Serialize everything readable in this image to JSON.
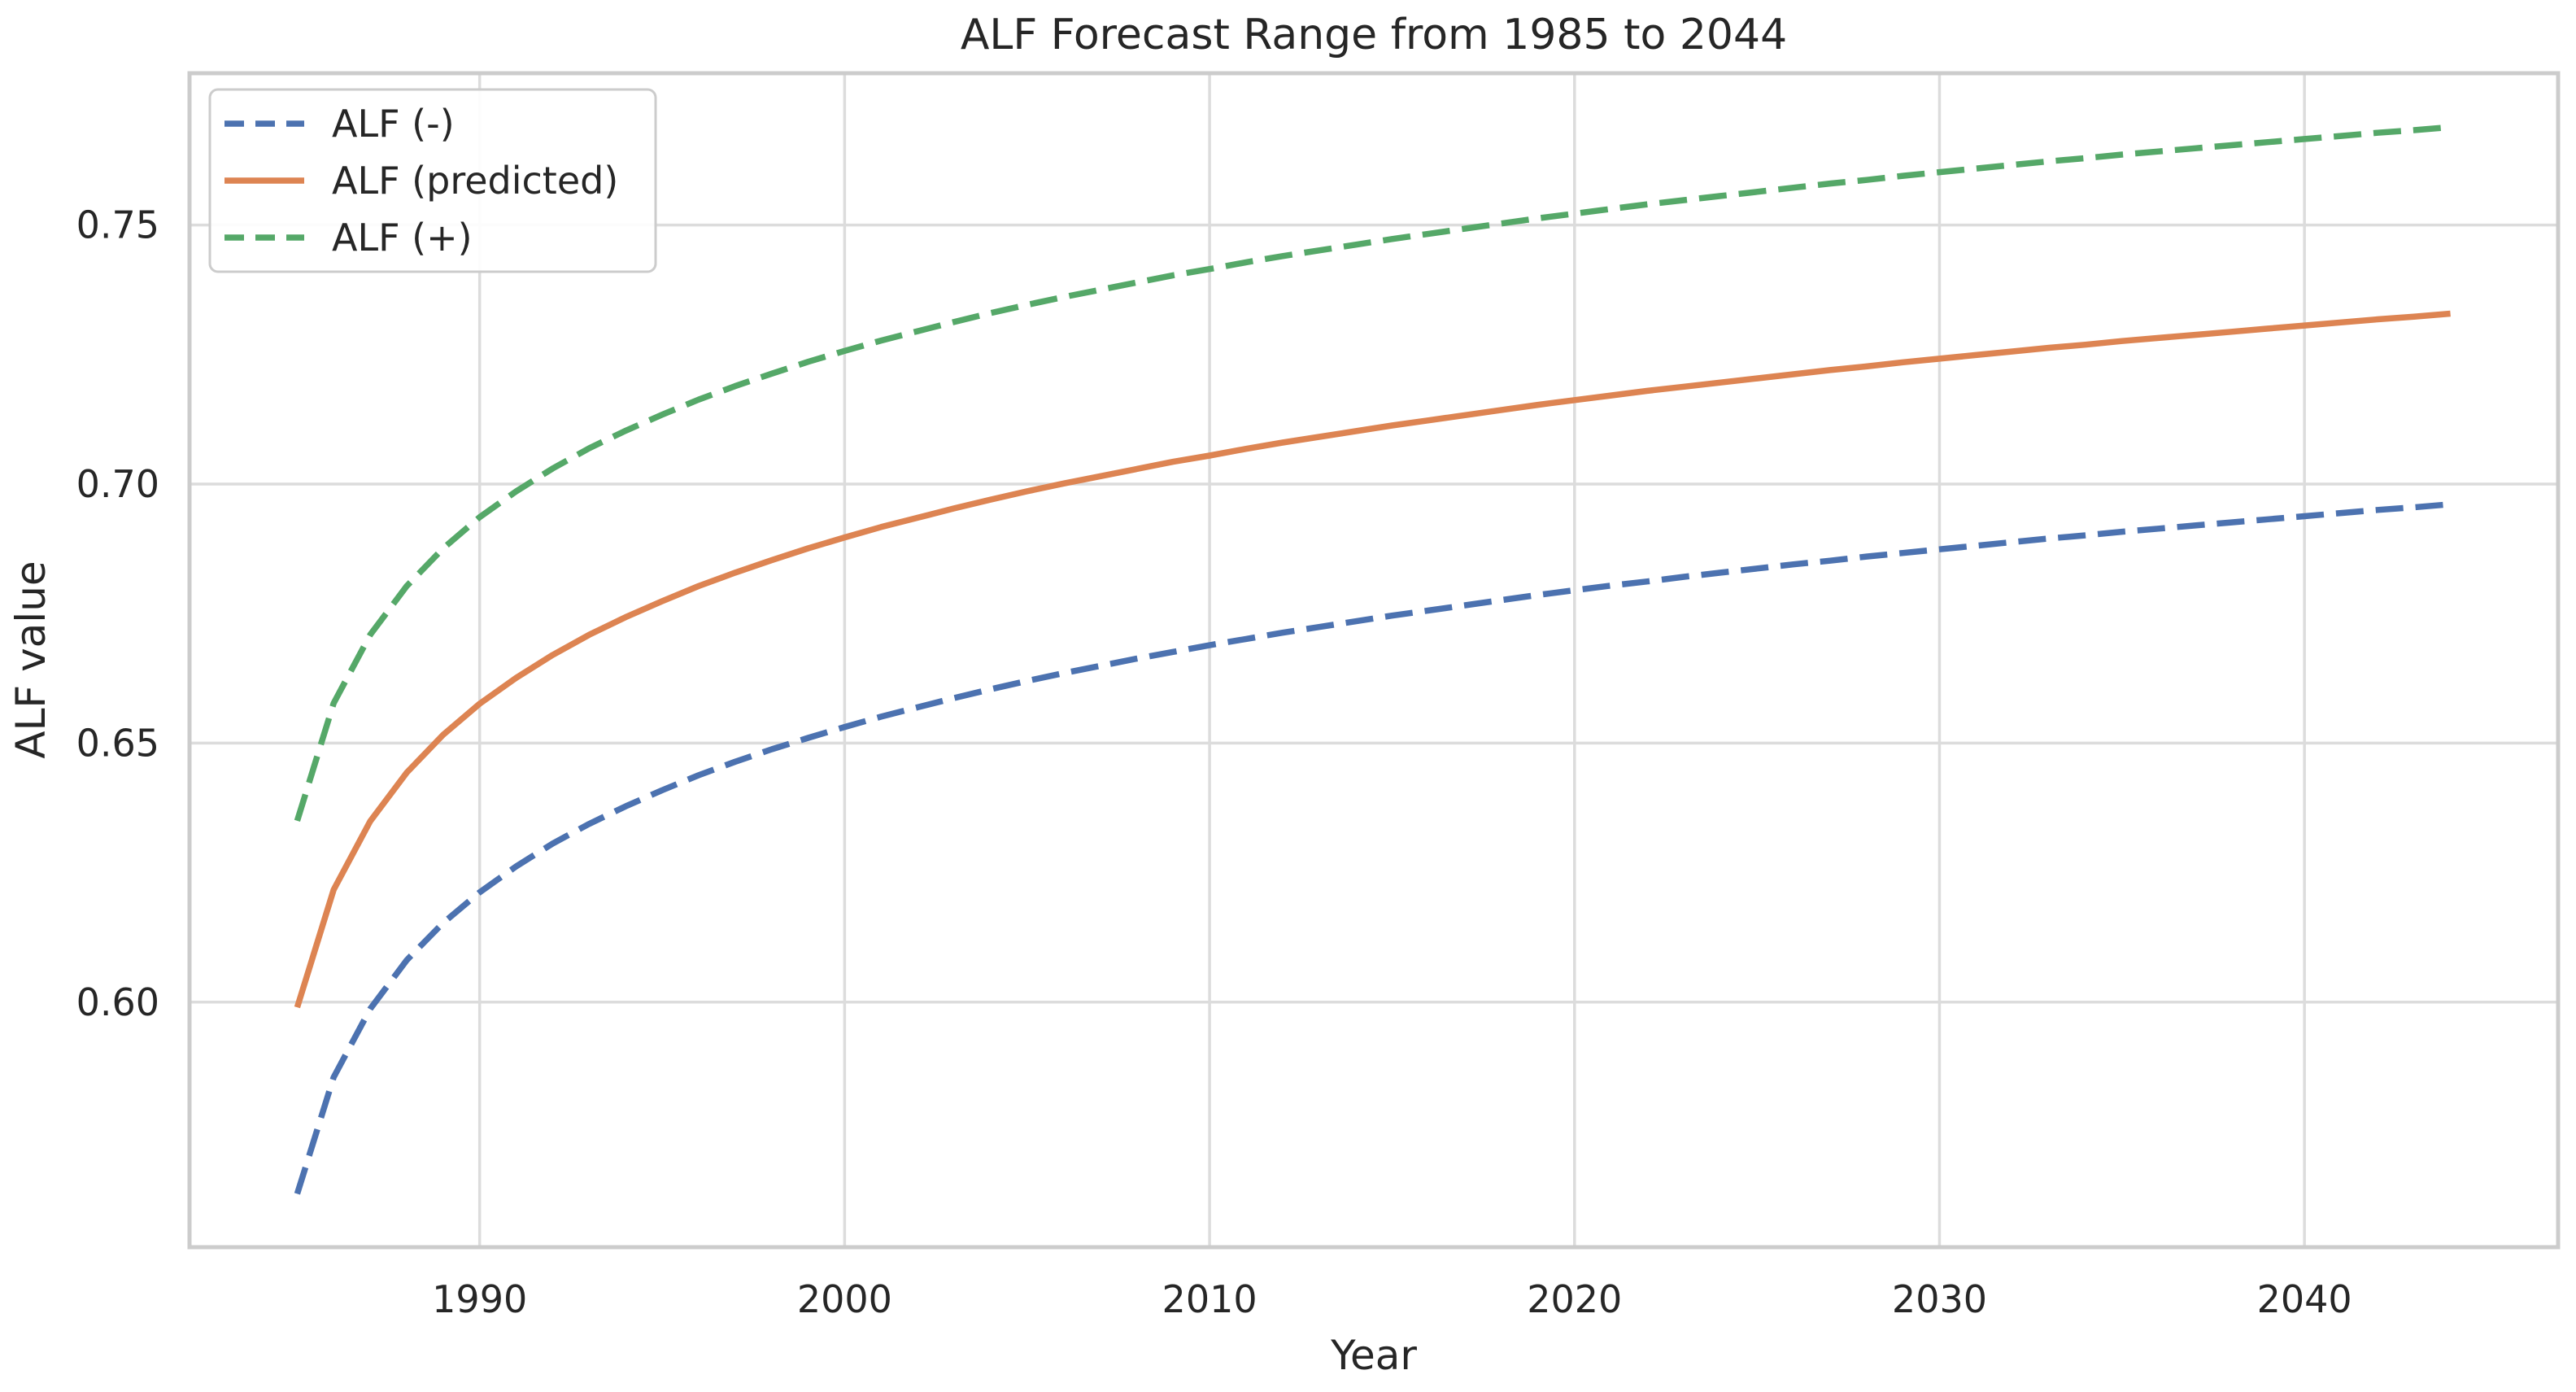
{
  "figure": {
    "title": "ALF Forecast Range from 1985 to 2044",
    "xlabel": "Year",
    "ylabel": "ALF value"
  },
  "legend": {
    "position": "upper left",
    "items": [
      "ALF (-)",
      "ALF (predicted)",
      "ALF (+)"
    ]
  },
  "colors": {
    "background": "#FFFFFF",
    "text": "#262626",
    "grid": "#DCDCDC",
    "spine": "#CCCCCC",
    "blue": "#4C72B0",
    "orange": "#DD8452",
    "green": "#55A868"
  },
  "chart_data": {
    "type": "line",
    "title": "ALF Forecast Range from 1985 to 2044",
    "xlabel": "Year",
    "ylabel": "ALF value",
    "grid": true,
    "legend_position": "upper left",
    "xlim": [
      1982.05,
      2046.95
    ],
    "ylim": [
      0.5527,
      0.7793
    ],
    "x_ticks": [
      1990,
      2000,
      2010,
      2020,
      2030,
      2040
    ],
    "x_tick_labels": [
      "1990",
      "2000",
      "2010",
      "2020",
      "2030",
      "2040"
    ],
    "y_ticks": [
      0.6,
      0.65,
      0.7,
      0.75
    ],
    "y_tick_labels": [
      "0.60",
      "0.65",
      "0.70",
      "0.75"
    ],
    "x": [
      1985,
      1986,
      1987,
      1988,
      1989,
      1990,
      1991,
      1992,
      1993,
      1994,
      1995,
      1996,
      1997,
      1998,
      1999,
      2000,
      2001,
      2002,
      2003,
      2004,
      2005,
      2006,
      2007,
      2008,
      2009,
      2010,
      2011,
      2012,
      2013,
      2014,
      2015,
      2016,
      2017,
      2018,
      2019,
      2020,
      2021,
      2022,
      2023,
      2024,
      2025,
      2026,
      2027,
      2028,
      2029,
      2030,
      2031,
      2032,
      2033,
      2034,
      2035,
      2036,
      2037,
      2038,
      2039,
      2040,
      2041,
      2042,
      2043,
      2044
    ],
    "series": [
      {
        "name": "ALF (-)",
        "color": "#4C72B0",
        "linestyle": "dashed",
        "values": [
          0.563,
          0.5855,
          0.5987,
          0.6081,
          0.6153,
          0.6212,
          0.6262,
          0.6306,
          0.6344,
          0.6378,
          0.6409,
          0.6438,
          0.6464,
          0.6488,
          0.651,
          0.6531,
          0.6551,
          0.6569,
          0.6587,
          0.6604,
          0.662,
          0.6635,
          0.6649,
          0.6663,
          0.6676,
          0.6689,
          0.6701,
          0.6713,
          0.6724,
          0.6735,
          0.6746,
          0.6756,
          0.6766,
          0.6776,
          0.6786,
          0.6795,
          0.6804,
          0.6812,
          0.6821,
          0.6829,
          0.6837,
          0.6845,
          0.6852,
          0.686,
          0.6867,
          0.6874,
          0.6881,
          0.6888,
          0.6895,
          0.6901,
          0.6908,
          0.6914,
          0.692,
          0.6926,
          0.6932,
          0.6938,
          0.6944,
          0.695,
          0.6955,
          0.6961
        ]
      },
      {
        "name": "ALF (predicted)",
        "color": "#DD8452",
        "linestyle": "solid",
        "values": [
          0.599,
          0.6217,
          0.6349,
          0.6443,
          0.6516,
          0.6576,
          0.6626,
          0.667,
          0.6709,
          0.6743,
          0.6774,
          0.6803,
          0.6829,
          0.6853,
          0.6876,
          0.6897,
          0.6917,
          0.6935,
          0.6953,
          0.697,
          0.6986,
          0.7001,
          0.7015,
          0.7029,
          0.7043,
          0.7055,
          0.7068,
          0.708,
          0.7091,
          0.7102,
          0.7113,
          0.7123,
          0.7133,
          0.7143,
          0.7153,
          0.7162,
          0.7171,
          0.718,
          0.7188,
          0.7196,
          0.7204,
          0.7212,
          0.722,
          0.7227,
          0.7235,
          0.7242,
          0.7249,
          0.7256,
          0.7263,
          0.7269,
          0.7276,
          0.7282,
          0.7288,
          0.7294,
          0.73,
          0.7306,
          0.7312,
          0.7318,
          0.7323,
          0.7329
        ]
      },
      {
        "name": "ALF (+)",
        "color": "#55A868",
        "linestyle": "dashed",
        "values": [
          0.635,
          0.6577,
          0.6709,
          0.6803,
          0.6876,
          0.6936,
          0.6986,
          0.703,
          0.7069,
          0.7103,
          0.7134,
          0.7163,
          0.7189,
          0.7213,
          0.7236,
          0.7257,
          0.7277,
          0.7295,
          0.7313,
          0.733,
          0.7346,
          0.7361,
          0.7375,
          0.7389,
          0.7403,
          0.7415,
          0.7428,
          0.744,
          0.7451,
          0.7462,
          0.7473,
          0.7483,
          0.7493,
          0.7503,
          0.7513,
          0.7522,
          0.7531,
          0.754,
          0.7548,
          0.7556,
          0.7564,
          0.7572,
          0.758,
          0.7587,
          0.7595,
          0.7602,
          0.7609,
          0.7616,
          0.7623,
          0.7629,
          0.7636,
          0.7642,
          0.7648,
          0.7654,
          0.766,
          0.7666,
          0.7672,
          0.7678,
          0.7683,
          0.7689
        ]
      }
    ]
  }
}
